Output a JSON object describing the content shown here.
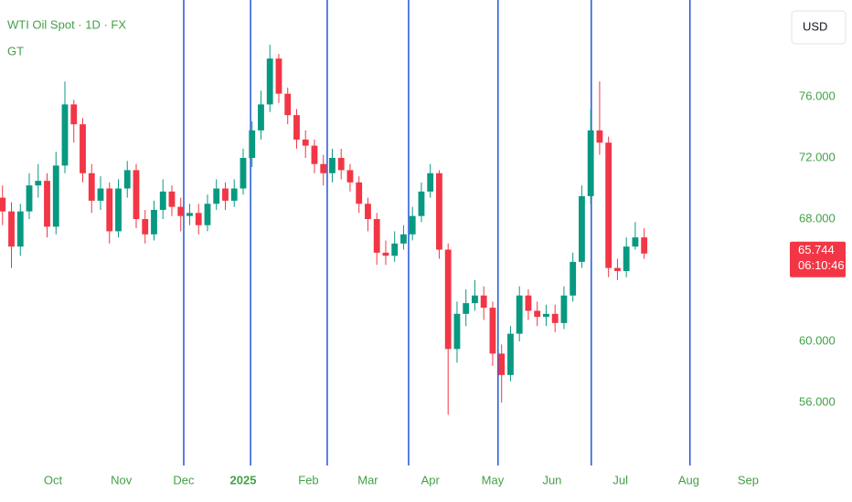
{
  "chart_data": {
    "type": "candlestick",
    "title": "WTI Oil Spot · 1D · FX",
    "subtitle": "GT",
    "currency": "USD",
    "countdown": "06:10:46",
    "up_color": "#089981",
    "down_color": "#f23645",
    "vline_color": "#2456d6",
    "x": [
      -17,
      -14,
      -11,
      -8,
      -5,
      -2,
      1,
      4,
      7,
      10,
      13,
      16,
      19,
      22,
      25,
      28,
      31,
      34,
      37,
      40,
      43,
      46,
      49,
      52,
      55,
      58,
      61,
      64,
      67,
      70,
      73,
      76,
      79,
      82,
      85,
      88,
      91,
      94,
      97,
      100,
      103,
      106,
      109,
      112,
      115,
      118,
      121,
      124,
      127,
      130,
      133,
      136,
      139,
      142,
      145,
      148,
      151,
      154,
      157,
      160,
      163,
      166,
      169,
      172,
      175,
      178,
      181,
      184,
      187,
      190,
      193,
      196,
      199
    ],
    "open": [
      69.4,
      68.5,
      66.2,
      68.5,
      70.2,
      70.5,
      67.5,
      71.5,
      75.5,
      74.2,
      71.0,
      69.2,
      70.0,
      67.2,
      70.0,
      71.2,
      68.0,
      67.0,
      68.6,
      69.8,
      68.8,
      68.2,
      68.4,
      67.6,
      69.0,
      70.0,
      69.2,
      70.0,
      72.0,
      73.8,
      75.5,
      78.5,
      76.2,
      74.8,
      73.2,
      72.8,
      71.6,
      71.0,
      72.0,
      71.2,
      70.4,
      69.0,
      68.0,
      65.8,
      65.6,
      66.4,
      67.0,
      68.2,
      69.8,
      71.0,
      66.0,
      59.5,
      61.8,
      62.5,
      63.0,
      62.2,
      59.2,
      57.8,
      60.5,
      63.0,
      62.0,
      61.6,
      61.8,
      61.2,
      63.0,
      65.2,
      69.5,
      73.8,
      73.0,
      64.8,
      64.6,
      66.2,
      66.8
    ],
    "high": [
      70.2,
      69.1,
      69.0,
      71.0,
      71.6,
      71.0,
      72.4,
      77.0,
      75.8,
      74.6,
      71.6,
      70.8,
      70.4,
      70.6,
      71.8,
      71.6,
      68.6,
      69.2,
      70.6,
      70.2,
      69.4,
      69.0,
      69.0,
      69.6,
      70.6,
      70.4,
      70.6,
      72.6,
      74.4,
      76.4,
      79.4,
      78.8,
      76.6,
      75.2,
      73.8,
      73.2,
      72.2,
      72.6,
      72.6,
      71.6,
      70.8,
      69.4,
      68.4,
      66.6,
      67.2,
      67.6,
      68.8,
      70.4,
      71.6,
      71.2,
      66.4,
      62.6,
      63.4,
      64.0,
      63.6,
      62.6,
      59.8,
      61.0,
      63.6,
      63.4,
      62.6,
      62.4,
      62.4,
      63.6,
      65.8,
      70.2,
      75.2,
      77.0,
      73.4,
      65.4,
      66.8,
      67.8,
      67.4
    ],
    "low": [
      67.6,
      64.8,
      65.6,
      68.0,
      69.4,
      66.8,
      67.0,
      71.0,
      73.0,
      70.4,
      68.4,
      68.6,
      66.4,
      66.8,
      69.4,
      67.4,
      66.4,
      66.6,
      68.0,
      68.2,
      67.2,
      67.6,
      67.0,
      67.2,
      68.6,
      68.6,
      68.8,
      69.6,
      71.4,
      73.2,
      75.0,
      75.6,
      74.2,
      72.6,
      72.0,
      71.0,
      70.2,
      70.4,
      70.6,
      69.8,
      68.4,
      67.2,
      65.0,
      65.0,
      65.2,
      66.0,
      66.6,
      67.8,
      69.4,
      65.4,
      55.2,
      58.6,
      61.0,
      62.0,
      61.4,
      58.4,
      56.0,
      57.4,
      60.0,
      61.4,
      61.0,
      61.0,
      60.6,
      60.8,
      62.6,
      64.8,
      69.0,
      72.2,
      64.2,
      64.0,
      64.2,
      66.0,
      65.4
    ],
    "close": [
      68.5,
      66.2,
      68.5,
      70.2,
      70.5,
      67.5,
      71.5,
      75.5,
      74.2,
      71.0,
      69.2,
      70.0,
      67.2,
      70.0,
      71.2,
      68.0,
      67.0,
      68.6,
      69.8,
      68.8,
      68.2,
      68.4,
      67.6,
      69.0,
      70.0,
      69.2,
      70.0,
      72.0,
      73.8,
      75.5,
      78.5,
      76.2,
      74.8,
      73.2,
      72.8,
      71.6,
      71.0,
      72.0,
      71.2,
      70.4,
      69.0,
      68.0,
      65.8,
      65.6,
      66.4,
      67.0,
      68.2,
      69.8,
      71.0,
      66.0,
      59.5,
      61.8,
      62.5,
      63.0,
      62.2,
      59.2,
      57.8,
      60.5,
      63.0,
      62.0,
      61.6,
      61.8,
      61.2,
      63.0,
      65.2,
      69.5,
      73.8,
      73.0,
      64.8,
      64.6,
      66.2,
      66.8,
      65.744
    ],
    "vlines": [
      44,
      66.5,
      92.3,
      119.7,
      149.8,
      181.2,
      214.4
    ],
    "xlim": [
      -17.85,
      246.8
    ],
    "ylim": [
      51.88,
      82.33
    ],
    "xticks": [
      {
        "value": 0,
        "label": "Oct"
      },
      {
        "value": 23,
        "label": "Nov"
      },
      {
        "value": 44,
        "label": "Dec"
      },
      {
        "value": 64,
        "label": "2025"
      },
      {
        "value": 86,
        "label": "Feb"
      },
      {
        "value": 106,
        "label": "Mar"
      },
      {
        "value": 127,
        "label": "Apr"
      },
      {
        "value": 148,
        "label": "May"
      },
      {
        "value": 168,
        "label": "Jun"
      },
      {
        "value": 191,
        "label": "Jul"
      },
      {
        "value": 214,
        "label": "Aug"
      },
      {
        "value": 234,
        "label": "Sep"
      }
    ],
    "yticks": [
      {
        "value": 56,
        "label": "56.000"
      },
      {
        "value": 60,
        "label": "60.000"
      },
      {
        "value": 68,
        "label": "68.000"
      },
      {
        "value": 72,
        "label": "72.000"
      },
      {
        "value": 76,
        "label": "76.000"
      }
    ]
  }
}
